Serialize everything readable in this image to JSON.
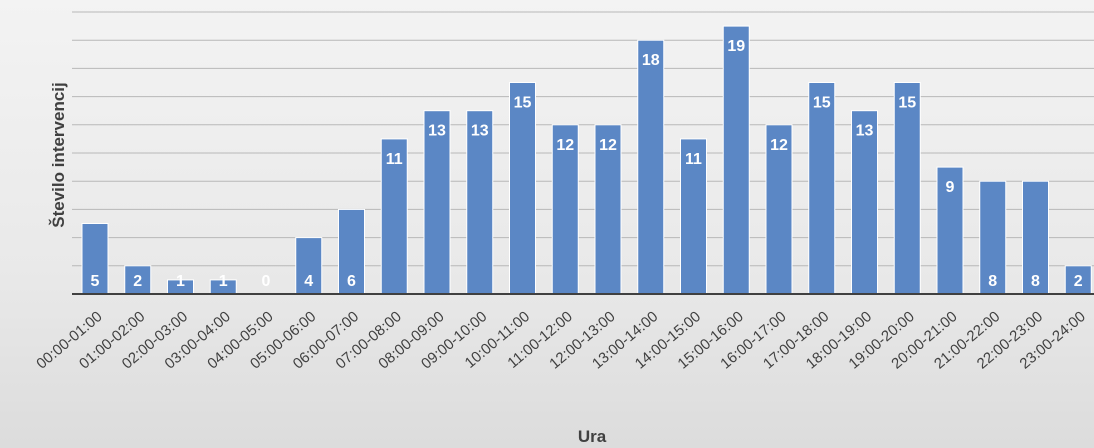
{
  "chart_data": {
    "type": "bar",
    "xlabel": "Ura",
    "ylabel": "Število intervencij",
    "ylim": [
      0,
      20
    ],
    "grid": true,
    "categories": [
      "00:00-01:00",
      "01:00-02:00",
      "02:00-03:00",
      "03:00-04:00",
      "04:00-05:00",
      "05:00-06:00",
      "06:00-07:00",
      "07:00-08:00",
      "08:00-09:00",
      "09:00-10:00",
      "10:00-11:00",
      "11:00-12:00",
      "12:00-13:00",
      "13:00-14:00",
      "14:00-15:00",
      "15:00-16:00",
      "16:00-17:00",
      "17:00-18:00",
      "18:00-19:00",
      "19:00-20:00",
      "20:00-21:00",
      "21:00-22:00",
      "22:00-23:00",
      "23:00-24:00"
    ],
    "values": [
      5,
      2,
      1,
      1,
      0,
      4,
      6,
      11,
      13,
      13,
      15,
      12,
      12,
      18,
      11,
      19,
      12,
      15,
      13,
      15,
      9,
      8,
      8,
      2
    ],
    "colors": {
      "bar": "#5b87c5",
      "bar_edge": "#ffffff",
      "grid": "#b8b8b8",
      "axis": "#404040"
    }
  }
}
